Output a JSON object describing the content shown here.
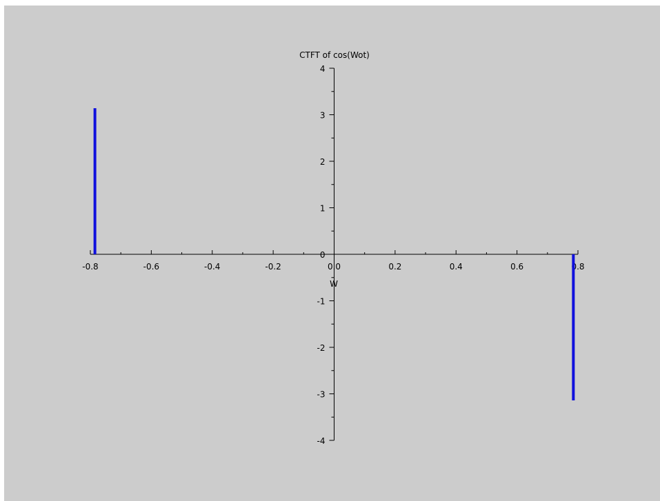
{
  "chart_data": {
    "type": "stem",
    "title": "CTFT of cos(Wot)",
    "xlabel": "W",
    "ylabel": "",
    "xlim": [
      -0.8,
      0.8
    ],
    "ylim": [
      -4,
      4
    ],
    "x_ticks": [
      "-0.8",
      "-0.6",
      "-0.4",
      "-0.2",
      "0.0",
      "0.2",
      "0.4",
      "0.6",
      "0.8"
    ],
    "y_ticks": [
      "-4",
      "-3",
      "-2",
      "-1",
      "0",
      "1",
      "2",
      "3",
      "4"
    ],
    "x": [
      -0.785,
      0.785
    ],
    "y": [
      3.14,
      -3.14
    ],
    "series_color": "#1010dd",
    "grid": false,
    "axes_location": "origin"
  },
  "colors": {
    "background": "#cccccc",
    "axis": "#000000",
    "stem": "#1010dd"
  }
}
